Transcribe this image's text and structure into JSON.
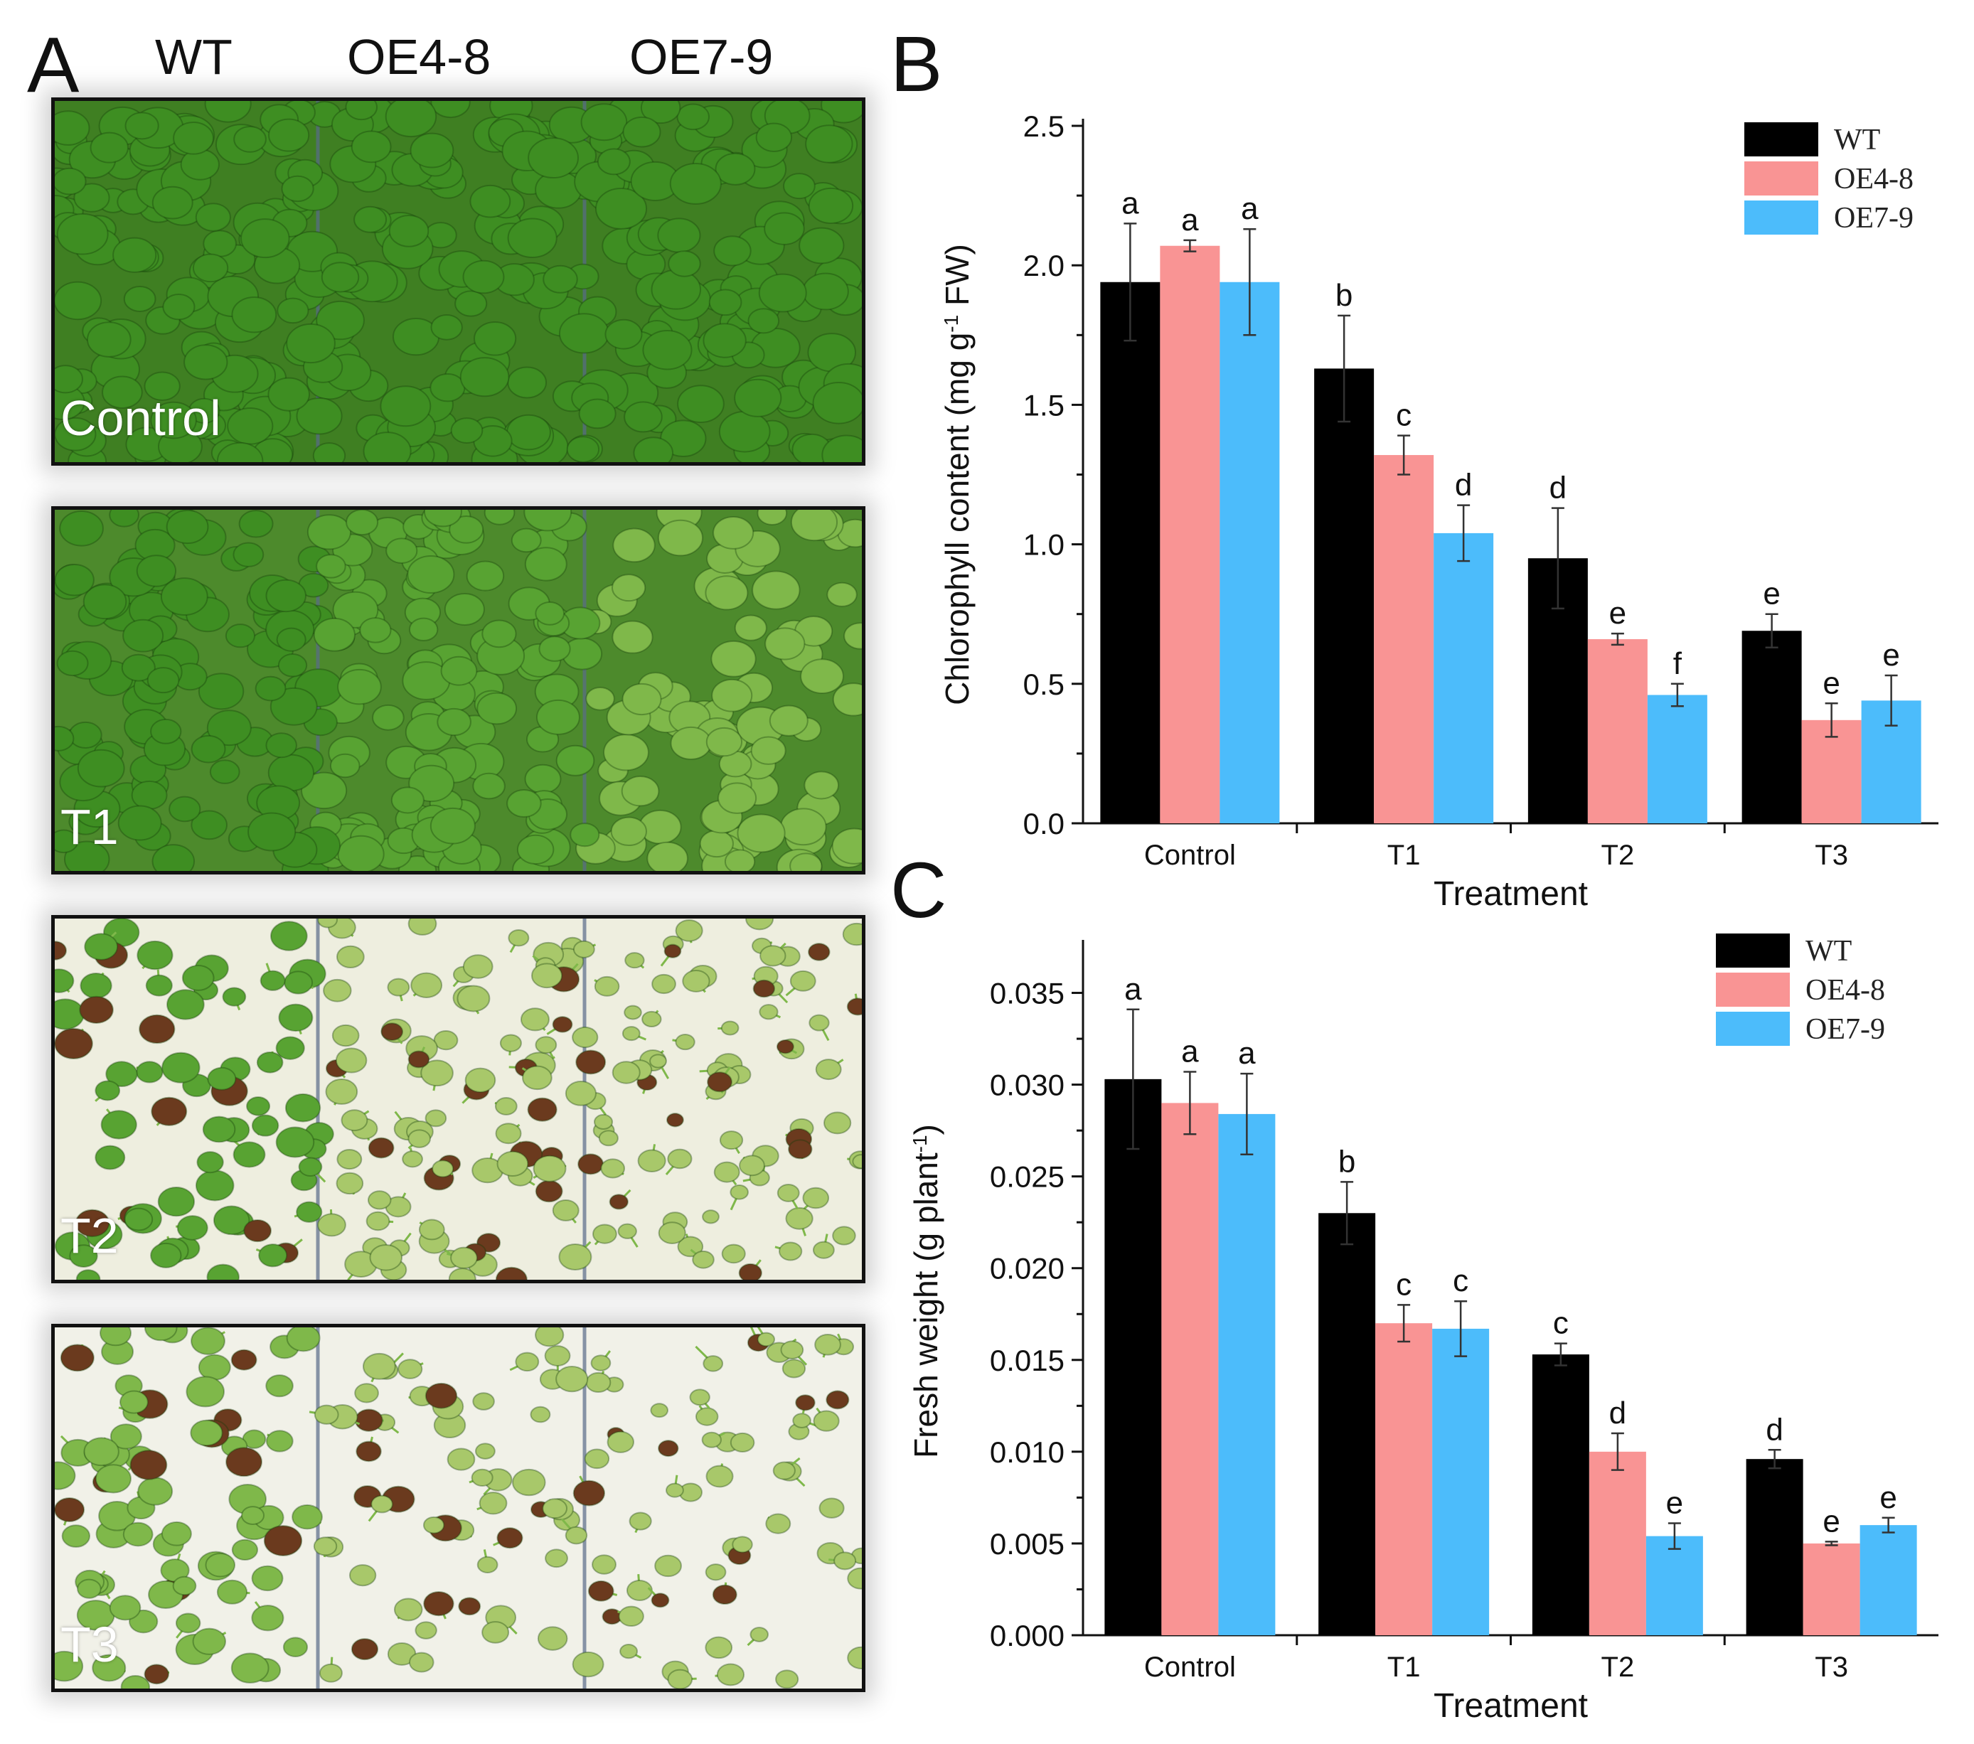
{
  "panelA": {
    "letter": "A",
    "genotypes": [
      "WT",
      "OE4-8",
      "OE7-9"
    ],
    "photos": [
      {
        "label": "Control",
        "stress": 0
      },
      {
        "label": "T1",
        "stress": 1
      },
      {
        "label": "T2",
        "stress": 2
      },
      {
        "label": "T3",
        "stress": 3
      }
    ]
  },
  "colors": {
    "WT": "#000000",
    "OE4-8": "#f99494",
    "OE7-9": "#4cbcfb",
    "leaf": "#4c9a2a",
    "plate": "#f2f2e9"
  },
  "chart_data": [
    {
      "panel": "B",
      "type": "bar",
      "title": "",
      "xlabel": "Treatment",
      "ylabel": "Chlorophyll content (mg g-1 FW)",
      "ylabel_parts": [
        "Chlorophyll content (mg g",
        "-1",
        " FW)"
      ],
      "ylim": [
        0,
        2.5
      ],
      "yticks": [
        "0.0",
        "0.5",
        "1.0",
        "1.5",
        "2.0",
        "2.5"
      ],
      "ytick_values": [
        0,
        0.5,
        1.0,
        1.5,
        2.0,
        2.5
      ],
      "categories": [
        "Control",
        "T1",
        "T2",
        "T3"
      ],
      "legend_position": "top-right",
      "series": [
        {
          "name": "WT",
          "color": "#000000",
          "values": [
            1.94,
            1.63,
            0.95,
            0.69
          ],
          "errors": [
            0.21,
            0.19,
            0.18,
            0.06
          ],
          "letters": [
            "a",
            "b",
            "d",
            "e"
          ]
        },
        {
          "name": "OE4-8",
          "color": "#f99494",
          "values": [
            2.07,
            1.32,
            0.66,
            0.37
          ],
          "errors": [
            0.02,
            0.07,
            0.02,
            0.06
          ],
          "letters": [
            "a",
            "c",
            "e",
            "e"
          ]
        },
        {
          "name": "OE7-9",
          "color": "#4cbcfb",
          "values": [
            1.94,
            1.04,
            0.46,
            0.44
          ],
          "errors": [
            0.19,
            0.1,
            0.04,
            0.09
          ],
          "letters": [
            "a",
            "d",
            "f",
            "e"
          ]
        }
      ]
    },
    {
      "panel": "C",
      "type": "bar",
      "title": "",
      "xlabel": "Treatment",
      "ylabel": "Fresh weight (g plant-1)",
      "ylabel_parts": [
        "Fresh weight (g plant",
        "-1",
        ")"
      ],
      "ylim": [
        0,
        0.0375
      ],
      "yticks": [
        "0.000",
        "0.005",
        "0.010",
        "0.015",
        "0.020",
        "0.025",
        "0.030",
        "0.035"
      ],
      "ytick_values": [
        0,
        0.005,
        0.01,
        0.015,
        0.02,
        0.025,
        0.03,
        0.035
      ],
      "categories": [
        "Control",
        "T1",
        "T2",
        "T3"
      ],
      "legend_position": "top-right",
      "series": [
        {
          "name": "WT",
          "color": "#000000",
          "values": [
            0.0303,
            0.023,
            0.0153,
            0.0096
          ],
          "errors": [
            0.0038,
            0.0017,
            0.0006,
            0.0005
          ],
          "letters": [
            "a",
            "b",
            "c",
            "d"
          ]
        },
        {
          "name": "OE4-8",
          "color": "#f99494",
          "values": [
            0.029,
            0.017,
            0.01,
            0.005
          ],
          "errors": [
            0.0017,
            0.001,
            0.001,
            0.0001
          ],
          "letters": [
            "a",
            "c",
            "d",
            "e"
          ]
        },
        {
          "name": "OE7-9",
          "color": "#4cbcfb",
          "values": [
            0.0284,
            0.0167,
            0.0054,
            0.006
          ],
          "errors": [
            0.0022,
            0.0015,
            0.0007,
            0.0004
          ],
          "letters": [
            "a",
            "c",
            "e",
            "e"
          ]
        }
      ]
    }
  ]
}
